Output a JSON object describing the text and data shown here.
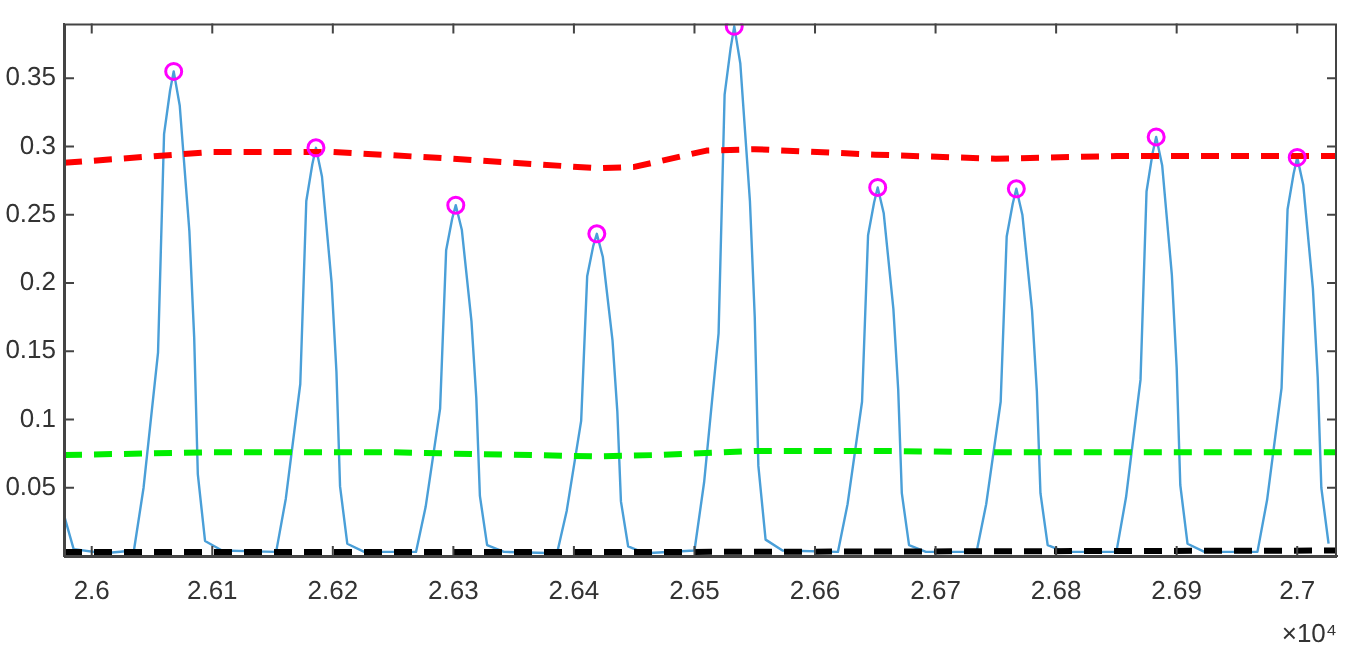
{
  "chart_data": {
    "type": "line",
    "xlim": [
      2.5977,
      2.7033
    ],
    "ylim": [
      0,
      0.39
    ],
    "xticks": [
      2.6,
      2.61,
      2.62,
      2.63,
      2.64,
      2.65,
      2.66,
      2.67,
      2.68,
      2.69,
      2.7
    ],
    "yticks": [
      0.05,
      0.1,
      0.15,
      0.2,
      0.25,
      0.3,
      0.35
    ],
    "grid": false,
    "legend": false,
    "annotations": [
      "×10⁴"
    ],
    "series": [
      {
        "color": "#4a9fd8",
        "marker": "none",
        "line_style": "solid",
        "x": [
          2.5977,
          2.5985,
          2.601,
          2.6035,
          2.6043,
          2.6055,
          2.606,
          2.6065,
          2.6068,
          2.6073,
          2.6081,
          2.6085,
          2.6088,
          2.6094,
          2.6108,
          2.6153,
          2.6161,
          2.6173,
          2.6178,
          2.6183,
          2.6186,
          2.6191,
          2.6199,
          2.6203,
          2.6206,
          2.6212,
          2.6226,
          2.6269,
          2.6277,
          2.6289,
          2.6294,
          2.6299,
          2.6302,
          2.6307,
          2.6315,
          2.6319,
          2.6322,
          2.6328,
          2.6342,
          2.6386,
          2.6394,
          2.6406,
          2.6411,
          2.6416,
          2.6419,
          2.6424,
          2.6432,
          2.6436,
          2.6439,
          2.6445,
          2.6459,
          2.65,
          2.6508,
          2.652,
          2.6525,
          2.653,
          2.6533,
          2.6538,
          2.6546,
          2.655,
          2.6553,
          2.6559,
          2.6573,
          2.6619,
          2.6627,
          2.6639,
          2.6644,
          2.6649,
          2.6652,
          2.6657,
          2.6665,
          2.6669,
          2.6672,
          2.6678,
          2.6692,
          2.6734,
          2.6742,
          2.6754,
          2.6759,
          2.6764,
          2.6767,
          2.6772,
          2.678,
          2.6784,
          2.6787,
          2.6793,
          2.6807,
          2.685,
          2.6858,
          2.687,
          2.6875,
          2.688,
          2.6883,
          2.6888,
          2.6896,
          2.69,
          2.6903,
          2.6909,
          2.6923,
          2.6967,
          2.6975,
          2.6987,
          2.6992,
          2.6997,
          2.7,
          2.7005,
          2.7013,
          2.7017,
          2.702,
          2.7026
        ],
        "values": [
          0.03,
          0.005,
          0.002,
          0.004,
          0.05,
          0.149,
          0.309,
          0.341,
          0.355,
          0.33,
          0.238,
          0.16,
          0.06,
          0.011,
          0.004,
          0.003,
          0.042,
          0.126,
          0.26,
          0.287,
          0.299,
          0.278,
          0.2,
          0.135,
          0.051,
          0.009,
          0.003,
          0.003,
          0.036,
          0.108,
          0.224,
          0.247,
          0.257,
          0.239,
          0.172,
          0.116,
          0.044,
          0.008,
          0.003,
          0.002,
          0.033,
          0.099,
          0.205,
          0.227,
          0.236,
          0.219,
          0.158,
          0.106,
          0.04,
          0.007,
          0.002,
          0.004,
          0.054,
          0.163,
          0.338,
          0.372,
          0.388,
          0.361,
          0.26,
          0.175,
          0.066,
          0.012,
          0.004,
          0.003,
          0.038,
          0.113,
          0.235,
          0.259,
          0.27,
          0.251,
          0.181,
          0.122,
          0.046,
          0.008,
          0.003,
          0.003,
          0.038,
          0.113,
          0.234,
          0.258,
          0.269,
          0.25,
          0.18,
          0.121,
          0.046,
          0.008,
          0.003,
          0.003,
          0.043,
          0.129,
          0.267,
          0.295,
          0.307,
          0.286,
          0.206,
          0.138,
          0.052,
          0.009,
          0.003,
          0.003,
          0.041,
          0.123,
          0.254,
          0.28,
          0.292,
          0.272,
          0.196,
          0.131,
          0.05,
          0.009
        ]
      },
      {
        "color": "#ff0000",
        "marker": "none",
        "line_style": "dashed",
        "x": [
          2.5977,
          2.61,
          2.62,
          2.63,
          2.642,
          2.645,
          2.651,
          2.655,
          2.665,
          2.675,
          2.685,
          2.7033
        ],
        "values": [
          0.288,
          0.296,
          0.296,
          0.291,
          0.284,
          0.285,
          0.297,
          0.298,
          0.294,
          0.291,
          0.293,
          0.293
        ]
      },
      {
        "color": "#00ee00",
        "marker": "none",
        "line_style": "dashed",
        "x": [
          2.5977,
          2.61,
          2.625,
          2.63,
          2.642,
          2.647,
          2.655,
          2.665,
          2.675,
          2.7033
        ],
        "values": [
          0.074,
          0.076,
          0.076,
          0.075,
          0.073,
          0.074,
          0.077,
          0.077,
          0.076,
          0.076
        ]
      },
      {
        "color": "#000000",
        "marker": "none",
        "line_style": "dashed",
        "x": [
          2.5977,
          2.65,
          2.7033
        ],
        "values": [
          0.003,
          0.003,
          0.004
        ]
      },
      {
        "type": "scatter",
        "color": "#ff00ff",
        "marker": "circle",
        "x": [
          2.6068,
          2.6186,
          2.6302,
          2.6419,
          2.6533,
          2.6652,
          2.6767,
          2.6883,
          2.7
        ],
        "values": [
          0.355,
          0.299,
          0.257,
          0.236,
          0.388,
          0.27,
          0.269,
          0.307,
          0.292
        ]
      }
    ]
  }
}
